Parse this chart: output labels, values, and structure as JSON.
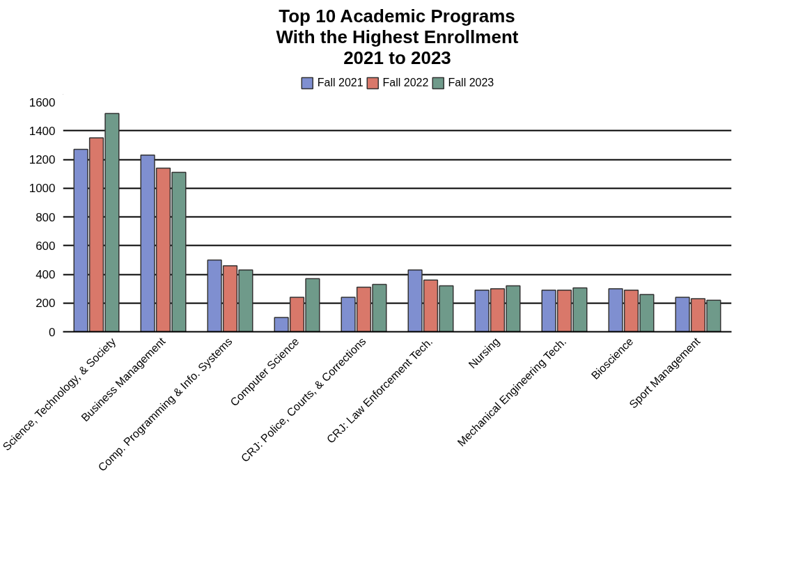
{
  "chart_data": {
    "type": "bar",
    "title": "Top 10 Academic Programs\nWith the Highest Enrollment\n2021 to 2023",
    "categories": [
      "Science, Technology, & Society",
      "Business Management",
      "Comp. Programming & Info. Systems",
      "Computer Science",
      "CRJ: Police, Courts, & Corrections",
      "CRJ: Law Enforcement Tech.",
      "Nursing",
      "Mechanical Engineering Tech.",
      "Bioscience",
      "Sport Management"
    ],
    "series": [
      {
        "name": "Fall 2021",
        "color": "#7f8fd0",
        "values": [
          1270,
          1230,
          500,
          100,
          240,
          430,
          290,
          290,
          300,
          240
        ]
      },
      {
        "name": "Fall 2022",
        "color": "#d9786a",
        "values": [
          1350,
          1140,
          460,
          240,
          310,
          360,
          300,
          290,
          290,
          230
        ]
      },
      {
        "name": "Fall 2023",
        "color": "#6f9a8a",
        "values": [
          1520,
          1110,
          430,
          370,
          330,
          320,
          320,
          305,
          260,
          220
        ]
      }
    ],
    "ylim": [
      0,
      1600
    ],
    "yticks": [
      0,
      200,
      400,
      600,
      800,
      1000,
      1200,
      1400,
      1600
    ],
    "grid": "y",
    "legend": "top"
  }
}
